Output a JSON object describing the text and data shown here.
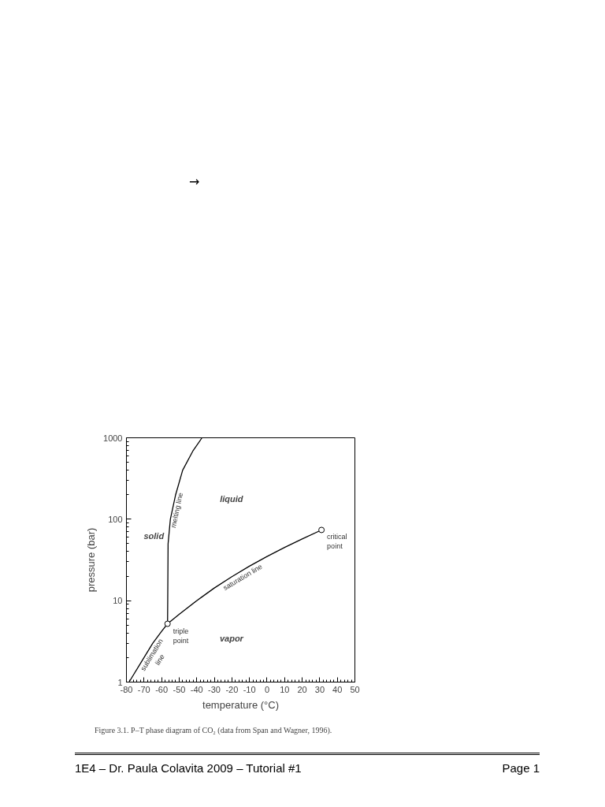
{
  "chart_data": {
    "type": "line",
    "xlabel": "temperature (°C)",
    "ylabel": "pressure (bar)",
    "xlim": [
      -80,
      50
    ],
    "ylim": [
      1,
      1000
    ],
    "log": "y",
    "grid": false,
    "line_style": "solid",
    "xticks": [
      -80,
      -70,
      -60,
      -50,
      -40,
      -30,
      -20,
      -10,
      0,
      10,
      20,
      30,
      40,
      50
    ],
    "yticks": [
      1,
      10,
      100,
      1000
    ],
    "series": [
      {
        "name": "sublimation\nline",
        "color": "#000000",
        "x": [
          -78.5,
          -70,
          -65,
          -60,
          -56.6
        ],
        "values": [
          1,
          2.0,
          3.0,
          4.2,
          5.2
        ]
      },
      {
        "name": "saturation line",
        "color": "#000000",
        "x": [
          -56.6,
          -50,
          -40,
          -30,
          -20,
          -10,
          0,
          10,
          20,
          31
        ],
        "values": [
          5.2,
          6.8,
          10,
          14.3,
          19.7,
          26.5,
          34.9,
          45,
          57.3,
          73.8
        ]
      },
      {
        "name": "melting line",
        "color": "#000000",
        "x": [
          -56.6,
          -56.5,
          -56.3,
          -55,
          -52,
          -48,
          -42,
          -37
        ],
        "values": [
          5.2,
          10,
          50,
          100,
          200,
          400,
          700,
          1000
        ]
      },
      {
        "type": "scatter",
        "marker": "circle",
        "color": "#000000",
        "x": [
          -56.6,
          31
        ],
        "values": [
          5.2,
          73.8
        ]
      }
    ],
    "annotations": [
      "→",
      "Figure 3.1. P–T phase diagram of CO₂ (data from Span and Wagner, 1996).",
      "1E4 – Dr. Paula Colavita 2009 – Tutorial #1",
      "Page 1",
      {
        "text": "triple\npoint",
        "x": -56.6,
        "y": 5.2
      },
      {
        "text": "critical\npoint",
        "x": 31,
        "y": 73.8
      },
      "solid",
      "liquid",
      "vapor"
    ]
  }
}
